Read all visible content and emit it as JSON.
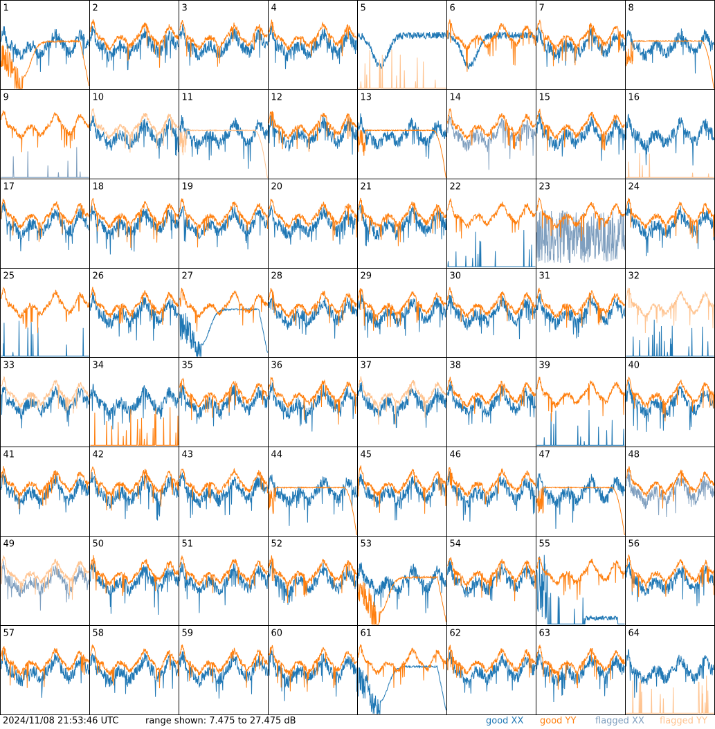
{
  "colors": {
    "good_xx": "#1f77b4",
    "good_yy": "#ff7f0e",
    "flagged_xx": "#7f9fbf",
    "flagged_yy": "#ffc38f"
  },
  "footer": {
    "timestamp": "2024/11/08 21:53:46 UTC",
    "range": "range shown: 7.475 to 27.475 dB",
    "legend_good_xx": "good XX",
    "legend_good_yy": "good YY",
    "legend_flagged_xx": "flagged XX",
    "legend_flagged_yy": "flagged YY"
  },
  "chart_data": {
    "type": "line",
    "ylim": [
      7.475,
      27.475
    ],
    "rows": 8,
    "cols": 8,
    "panels": [
      {
        "label": "1",
        "xx": "good",
        "yy": "good",
        "shape": "normal",
        "yy_shape": "deep_dip"
      },
      {
        "label": "2",
        "xx": "good",
        "yy": "good",
        "shape": "normal"
      },
      {
        "label": "3",
        "xx": "good",
        "yy": "good",
        "shape": "normal"
      },
      {
        "label": "4",
        "xx": "good",
        "yy": "good",
        "shape": "normal"
      },
      {
        "label": "5",
        "xx": "good",
        "yy": "flagged",
        "shape": "dip",
        "yy_shape": "spikes"
      },
      {
        "label": "6",
        "xx": "good",
        "yy": "good",
        "shape": "dip",
        "yy_shape": "normal"
      },
      {
        "label": "7",
        "xx": "good",
        "yy": "good",
        "shape": "normal"
      },
      {
        "label": "8",
        "xx": "good",
        "yy": "good",
        "shape": "normal",
        "yy_shape": "smooth_drop"
      },
      {
        "label": "9",
        "xx": "flagged",
        "yy": "good",
        "shape": "spikes",
        "yy_shape": "normal"
      },
      {
        "label": "10",
        "xx": "good",
        "yy": "flagged",
        "shape": "normal"
      },
      {
        "label": "11",
        "xx": "good",
        "yy": "flagged",
        "shape": "normal",
        "yy_shape": "smooth_drop"
      },
      {
        "label": "12",
        "xx": "good",
        "yy": "good",
        "shape": "normal"
      },
      {
        "label": "13",
        "xx": "good",
        "yy": "good",
        "shape": "normal",
        "yy_shape": "smooth_drop"
      },
      {
        "label": "14",
        "xx": "flagged",
        "yy": "good",
        "shape": "normal"
      },
      {
        "label": "15",
        "xx": "good",
        "yy": "good",
        "shape": "normal"
      },
      {
        "label": "16",
        "xx": "good",
        "yy": "flagged",
        "shape": "normal",
        "yy_shape": "spikes"
      },
      {
        "label": "17",
        "xx": "good",
        "yy": "good",
        "shape": "normal"
      },
      {
        "label": "18",
        "xx": "good",
        "yy": "good",
        "shape": "normal"
      },
      {
        "label": "19",
        "xx": "good",
        "yy": "good",
        "shape": "normal"
      },
      {
        "label": "20",
        "xx": "good",
        "yy": "good",
        "shape": "normal"
      },
      {
        "label": "21",
        "xx": "good",
        "yy": "good",
        "shape": "normal"
      },
      {
        "label": "22",
        "xx": "good",
        "yy": "good",
        "shape": "spikes",
        "yy_shape": "normal"
      },
      {
        "label": "23",
        "xx": "flagged",
        "yy": "good",
        "shape": "noisy_low",
        "yy_shape": "normal"
      },
      {
        "label": "24",
        "xx": "good",
        "yy": "good",
        "shape": "normal"
      },
      {
        "label": "25",
        "xx": "good",
        "yy": "good",
        "shape": "spikes",
        "yy_shape": "normal"
      },
      {
        "label": "26",
        "xx": "good",
        "yy": "good",
        "shape": "normal"
      },
      {
        "label": "27",
        "xx": "good",
        "yy": "good",
        "shape": "deep_dip",
        "yy_shape": "normal"
      },
      {
        "label": "28",
        "xx": "good",
        "yy": "good",
        "shape": "normal"
      },
      {
        "label": "29",
        "xx": "good",
        "yy": "good",
        "shape": "normal"
      },
      {
        "label": "30",
        "xx": "good",
        "yy": "good",
        "shape": "normal"
      },
      {
        "label": "31",
        "xx": "good",
        "yy": "good",
        "shape": "normal"
      },
      {
        "label": "32",
        "xx": "good",
        "yy": "flagged",
        "shape": "spikes",
        "yy_shape": "normal"
      },
      {
        "label": "33",
        "xx": "good",
        "yy": "flagged",
        "shape": "normal"
      },
      {
        "label": "34",
        "xx": "good",
        "yy": "good",
        "shape": "normal",
        "yy_shape": "spikes"
      },
      {
        "label": "35",
        "xx": "good",
        "yy": "good",
        "shape": "normal"
      },
      {
        "label": "36",
        "xx": "good",
        "yy": "good",
        "shape": "normal"
      },
      {
        "label": "37",
        "xx": "good",
        "yy": "flagged",
        "shape": "normal"
      },
      {
        "label": "38",
        "xx": "good",
        "yy": "good",
        "shape": "normal"
      },
      {
        "label": "39",
        "xx": "good",
        "yy": "good",
        "shape": "spikes",
        "yy_shape": "normal"
      },
      {
        "label": "40",
        "xx": "good",
        "yy": "good",
        "shape": "normal"
      },
      {
        "label": "41",
        "xx": "good",
        "yy": "good",
        "shape": "normal"
      },
      {
        "label": "42",
        "xx": "good",
        "yy": "good",
        "shape": "normal"
      },
      {
        "label": "43",
        "xx": "good",
        "yy": "good",
        "shape": "normal"
      },
      {
        "label": "44",
        "xx": "good",
        "yy": "good",
        "shape": "normal",
        "yy_shape": "smooth_drop"
      },
      {
        "label": "45",
        "xx": "good",
        "yy": "good",
        "shape": "normal"
      },
      {
        "label": "46",
        "xx": "good",
        "yy": "good",
        "shape": "normal"
      },
      {
        "label": "47",
        "xx": "good",
        "yy": "good",
        "shape": "normal",
        "yy_shape": "smooth_drop"
      },
      {
        "label": "48",
        "xx": "flagged",
        "yy": "good",
        "shape": "normal"
      },
      {
        "label": "49",
        "xx": "flagged",
        "yy": "flagged",
        "shape": "normal"
      },
      {
        "label": "50",
        "xx": "good",
        "yy": "good",
        "shape": "normal"
      },
      {
        "label": "51",
        "xx": "good",
        "yy": "good",
        "shape": "normal"
      },
      {
        "label": "52",
        "xx": "good",
        "yy": "good",
        "shape": "normal"
      },
      {
        "label": "53",
        "xx": "good",
        "yy": "good",
        "shape": "normal",
        "yy_shape": "deep_dip"
      },
      {
        "label": "54",
        "xx": "good",
        "yy": "good",
        "shape": "normal"
      },
      {
        "label": "55",
        "xx": "good",
        "yy": "good",
        "shape": "spikes_low",
        "yy_shape": "normal"
      },
      {
        "label": "56",
        "xx": "good",
        "yy": "good",
        "shape": "normal"
      },
      {
        "label": "57",
        "xx": "good",
        "yy": "good",
        "shape": "normal"
      },
      {
        "label": "58",
        "xx": "good",
        "yy": "good",
        "shape": "normal"
      },
      {
        "label": "59",
        "xx": "good",
        "yy": "good",
        "shape": "normal"
      },
      {
        "label": "60",
        "xx": "good",
        "yy": "good",
        "shape": "normal"
      },
      {
        "label": "61",
        "xx": "good",
        "yy": "good",
        "shape": "deep_dip",
        "yy_shape": "normal"
      },
      {
        "label": "62",
        "xx": "good",
        "yy": "good",
        "shape": "normal"
      },
      {
        "label": "63",
        "xx": "good",
        "yy": "good",
        "shape": "normal"
      },
      {
        "label": "64",
        "xx": "good",
        "yy": "flagged",
        "shape": "normal",
        "yy_shape": "spikes"
      }
    ]
  }
}
